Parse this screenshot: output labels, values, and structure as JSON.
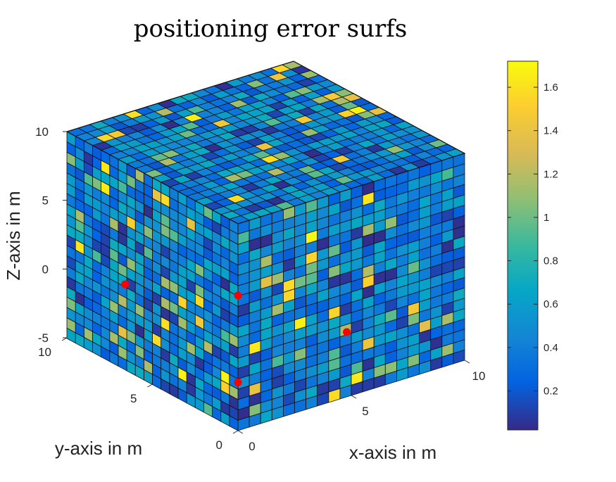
{
  "chart_data": {
    "type": "heatmap",
    "subtype": "3d-voxel-cube",
    "title": "positioning error surfs",
    "xlabel": "x-axis in m",
    "ylabel": "y-axis in m",
    "zlabel": "Z-axis in m",
    "xlim": [
      0,
      10
    ],
    "ylim": [
      0,
      10
    ],
    "zlim": [
      -5,
      10
    ],
    "x_ticks": [
      "0",
      "5",
      "10"
    ],
    "y_ticks": [
      "0",
      "5",
      "10"
    ],
    "z_ticks": [
      "10",
      "5",
      "0",
      "-5"
    ],
    "grid_cells": 20,
    "colormap": "parula",
    "colorbar": {
      "range": [
        0.02,
        1.72
      ],
      "ticks": [
        "1.6",
        "1.4",
        "1.2",
        "1",
        "0.8",
        "0.6",
        "0.4",
        "0.2"
      ],
      "tick_values": [
        1.6,
        1.4,
        1.2,
        1.0,
        0.8,
        0.6,
        0.4,
        0.2
      ]
    },
    "anchors": [
      {
        "x": 0,
        "y": 0,
        "z": 4.8
      },
      {
        "x": 0,
        "y": 0,
        "z": -1.5
      },
      {
        "x": 0,
        "y": 6.6,
        "z": 1.2
      },
      {
        "x": 4.8,
        "y": 0,
        "z": -0.3
      }
    ],
    "marker_color": "#ff0000",
    "edge_color": "#111111"
  }
}
